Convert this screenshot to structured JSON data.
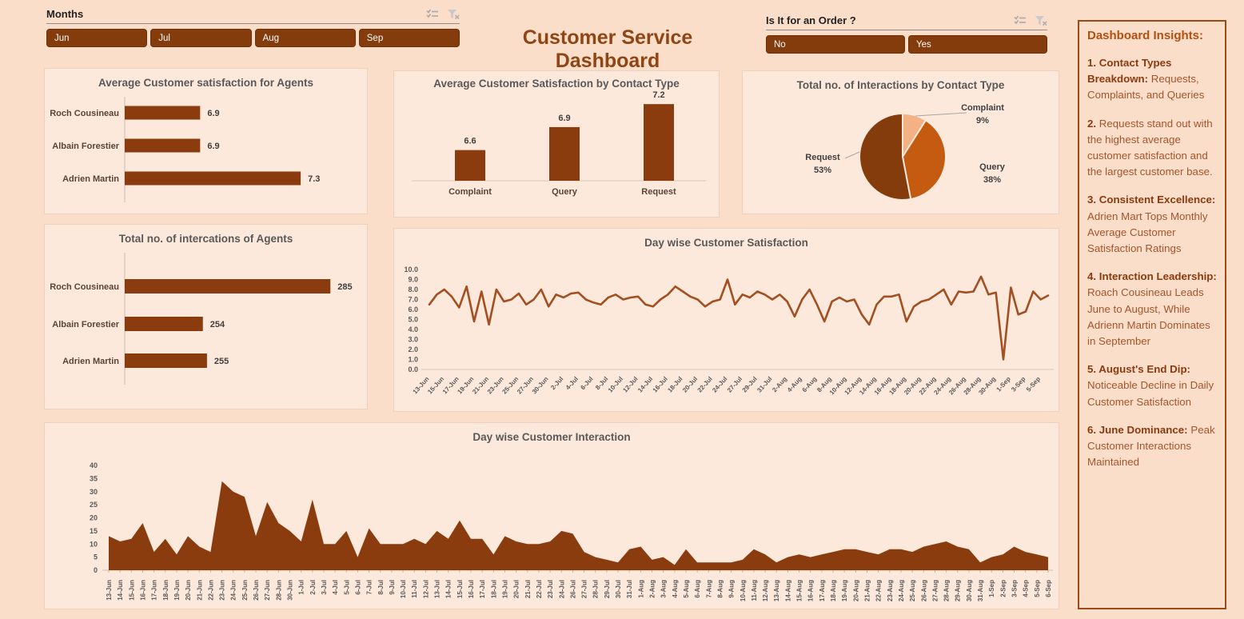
{
  "header": {
    "title": "Customer Service Dashboard"
  },
  "slicers": {
    "months": {
      "title": "Months",
      "options": [
        "Jun",
        "Jul",
        "Aug",
        "Sep"
      ]
    },
    "order": {
      "title": "Is It for an Order ?",
      "options": [
        "No",
        "Yes"
      ]
    }
  },
  "icons": {
    "multi_select": "multi-select-icon",
    "clear_filter": "clear-filter-icon"
  },
  "insights": {
    "title": "Dashboard Insights:",
    "items": [
      {
        "lead": "1. Contact Types Breakdown:",
        "rest": "Requests, Complaints, and Queries"
      },
      {
        "lead": "2.",
        "rest": "Requests stand out with the highest average customer satisfaction and the largest customer base."
      },
      {
        "lead": "3. Consistent Excellence:",
        "rest": "Adrien Mart Tops Monthly Average Customer Satisfaction Ratings"
      },
      {
        "lead": "4. Interaction Leadership:",
        "rest": "Roach Cousineau Leads June to August, While Adrienn Martin Dominates in September"
      },
      {
        "lead": "5. August's End Dip:",
        "rest": "Noticeable Decline in Daily Customer Satisfaction"
      },
      {
        "lead": "6. June Dominance:",
        "rest": "Peak Customer Interactions Maintained"
      }
    ]
  },
  "colors": {
    "page_bg": "#fbdeca",
    "panel_bg": "#fce9dc",
    "bar": "#8a3c0e",
    "line": "#a34f22",
    "button": "#843c0c",
    "title_text": "#8f4514",
    "pie_request": "#843c0c",
    "pie_query": "#c55a11",
    "pie_complaint": "#f4b183"
  },
  "chart_data": [
    {
      "id": "agent_satisfaction",
      "type": "bar",
      "orientation": "horizontal",
      "title": "Average Customer satisfaction for Agents",
      "categories": [
        "Roch Cousineau",
        "Albain Forestier",
        "Adrien Martin"
      ],
      "values": [
        6.9,
        6.9,
        7.3
      ],
      "data_labels": [
        "6.9",
        "6.9",
        "7.3"
      ],
      "xlim": [
        6.6,
        7.5
      ],
      "grid": false
    },
    {
      "id": "agent_interactions",
      "type": "bar",
      "orientation": "horizontal",
      "title": "Total no. of intercations of Agents",
      "categories": [
        "Roch Cousineau",
        "Albain Forestier",
        "Adrien Martin"
      ],
      "values": [
        285,
        254,
        255
      ],
      "data_labels": [
        "285",
        "254",
        "255"
      ],
      "xlim": [
        235,
        290
      ],
      "grid": false
    },
    {
      "id": "contact_satisfaction",
      "type": "bar",
      "orientation": "vertical",
      "title": "Average Customer Satisfaction by Contact Type",
      "categories": [
        "Complaint",
        "Query",
        "Request"
      ],
      "values": [
        6.6,
        6.9,
        7.2
      ],
      "data_labels": [
        "6.6",
        "6.9",
        "7.2"
      ],
      "ylim": [
        6.2,
        7.4
      ],
      "grid": false
    },
    {
      "id": "contact_interactions",
      "type": "pie",
      "title": "Total no. of Interactions by Contact Type",
      "categories": [
        "Complaint",
        "Query",
        "Request"
      ],
      "values": [
        9,
        38,
        53
      ],
      "slice_labels": [
        "Complaint\n9%",
        "Query\n38%",
        "Request\n53%"
      ],
      "colors": [
        "#f4b183",
        "#c55a11",
        "#843c0c"
      ],
      "start_angle_deg": 0,
      "direction": "clockwise"
    },
    {
      "id": "daily_satisfaction",
      "type": "line",
      "title": "Day wise Customer Satisfaction",
      "ylim": [
        0,
        10
      ],
      "ytick_step": 1,
      "ytick_decimals": 1,
      "xlabel_every": 2,
      "x": [
        "13-Jun",
        "14-Jun",
        "15-Jun",
        "16-Jun",
        "17-Jun",
        "18-Jun",
        "19-Jun",
        "20-Jun",
        "21-Jun",
        "22-Jun",
        "23-Jun",
        "24-Jun",
        "25-Jun",
        "26-Jun",
        "27-Jun",
        "28-Jun",
        "30-Jun",
        "1-Jul",
        "2-Jul",
        "3-Jul",
        "4-Jul",
        "5-Jul",
        "6-Jul",
        "7-Jul",
        "8-Jul",
        "9-Jul",
        "10-Jul",
        "11-Jul",
        "12-Jul",
        "13-Jul",
        "14-Jul",
        "15-Jul",
        "16-Jul",
        "17-Jul",
        "18-Jul",
        "19-Jul",
        "20-Jul",
        "21-Jul",
        "22-Jul",
        "23-Jul",
        "24-Jul",
        "26-Jul",
        "27-Jul",
        "28-Jul",
        "29-Jul",
        "30-Jul",
        "31-Jul",
        "1-Aug",
        "2-Aug",
        "3-Aug",
        "4-Aug",
        "5-Aug",
        "6-Aug",
        "7-Aug",
        "8-Aug",
        "9-Aug",
        "10-Aug",
        "11-Aug",
        "12-Aug",
        "13-Aug",
        "14-Aug",
        "15-Aug",
        "16-Aug",
        "17-Aug",
        "18-Aug",
        "19-Aug",
        "20-Aug",
        "21-Aug",
        "22-Aug",
        "23-Aug",
        "24-Aug",
        "25-Aug",
        "26-Aug",
        "27-Aug",
        "28-Aug",
        "29-Aug",
        "30-Aug",
        "31-Aug",
        "1-Sep",
        "2-Sep",
        "3-Sep",
        "4-Sep",
        "5-Sep",
        "6-Sep"
      ],
      "values": [
        6.5,
        7.5,
        8.0,
        7.3,
        6.2,
        8.3,
        4.8,
        7.8,
        4.5,
        8.0,
        6.8,
        7.0,
        7.6,
        6.5,
        7.0,
        8.0,
        6.3,
        7.5,
        7.2,
        7.6,
        7.7,
        7.0,
        6.7,
        6.5,
        7.2,
        7.5,
        7.0,
        7.2,
        7.3,
        6.5,
        6.3,
        7.0,
        7.5,
        8.3,
        7.8,
        7.3,
        7.0,
        6.3,
        6.8,
        7.0,
        9.0,
        6.5,
        7.5,
        7.2,
        7.8,
        7.5,
        7.0,
        7.5,
        6.8,
        5.3,
        7.0,
        8.0,
        6.5,
        4.8,
        6.8,
        7.2,
        6.8,
        7.0,
        5.5,
        4.5,
        6.5,
        7.3,
        7.3,
        7.5,
        4.8,
        6.3,
        6.8,
        7.0,
        7.5,
        8.0,
        6.5,
        7.8,
        7.7,
        7.8,
        9.3,
        7.5,
        7.7,
        1.0,
        8.2,
        5.5,
        5.8,
        7.8,
        7.0,
        7.4
      ]
    },
    {
      "id": "daily_interaction",
      "type": "area",
      "title": "Day wise Customer Interaction",
      "ylim": [
        0,
        40
      ],
      "ytick_step": 5,
      "ytick_decimals": 0,
      "xlabel_every": 1,
      "x": [
        "13-Jun",
        "14-Jun",
        "15-Jun",
        "16-Jun",
        "17-Jun",
        "18-Jun",
        "19-Jun",
        "20-Jun",
        "21-Jun",
        "22-Jun",
        "23-Jun",
        "24-Jun",
        "25-Jun",
        "26-Jun",
        "27-Jun",
        "28-Jun",
        "30-Jun",
        "1-Jul",
        "2-Jul",
        "3-Jul",
        "4-Jul",
        "5-Jul",
        "6-Jul",
        "7-Jul",
        "8-Jul",
        "9-Jul",
        "10-Jul",
        "11-Jul",
        "12-Jul",
        "13-Jul",
        "14-Jul",
        "15-Jul",
        "16-Jul",
        "17-Jul",
        "18-Jul",
        "19-Jul",
        "20-Jul",
        "21-Jul",
        "22-Jul",
        "23-Jul",
        "24-Jul",
        "26-Jul",
        "27-Jul",
        "28-Jul",
        "29-Jul",
        "30-Jul",
        "31-Jul",
        "1-Aug",
        "2-Aug",
        "3-Aug",
        "4-Aug",
        "5-Aug",
        "6-Aug",
        "7-Aug",
        "8-Aug",
        "9-Aug",
        "10-Aug",
        "11-Aug",
        "12-Aug",
        "13-Aug",
        "14-Aug",
        "15-Aug",
        "16-Aug",
        "17-Aug",
        "18-Aug",
        "19-Aug",
        "20-Aug",
        "21-Aug",
        "22-Aug",
        "23-Aug",
        "24-Aug",
        "25-Aug",
        "26-Aug",
        "27-Aug",
        "28-Aug",
        "29-Aug",
        "30-Aug",
        "31-Aug",
        "1-Sep",
        "2-Sep",
        "3-Sep",
        "4-Sep",
        "5-Sep",
        "6-Sep"
      ],
      "values": [
        13,
        11,
        12,
        18,
        7,
        12,
        6,
        13,
        9,
        7,
        34,
        30,
        28,
        13,
        26,
        18,
        15,
        11,
        27,
        10,
        10,
        15,
        5,
        16,
        10,
        10,
        10,
        12,
        10,
        15,
        12,
        19,
        12,
        12,
        6,
        13,
        11,
        10,
        10,
        11,
        15,
        14,
        7,
        5,
        4,
        3,
        8,
        9,
        4,
        5,
        2,
        8,
        3,
        3,
        3,
        3,
        4,
        8,
        6,
        3,
        5,
        6,
        5,
        6,
        7,
        8,
        8,
        7,
        6,
        8,
        8,
        7,
        9,
        10,
        11,
        9,
        8,
        3,
        5,
        6,
        9,
        7,
        6,
        5
      ]
    }
  ]
}
